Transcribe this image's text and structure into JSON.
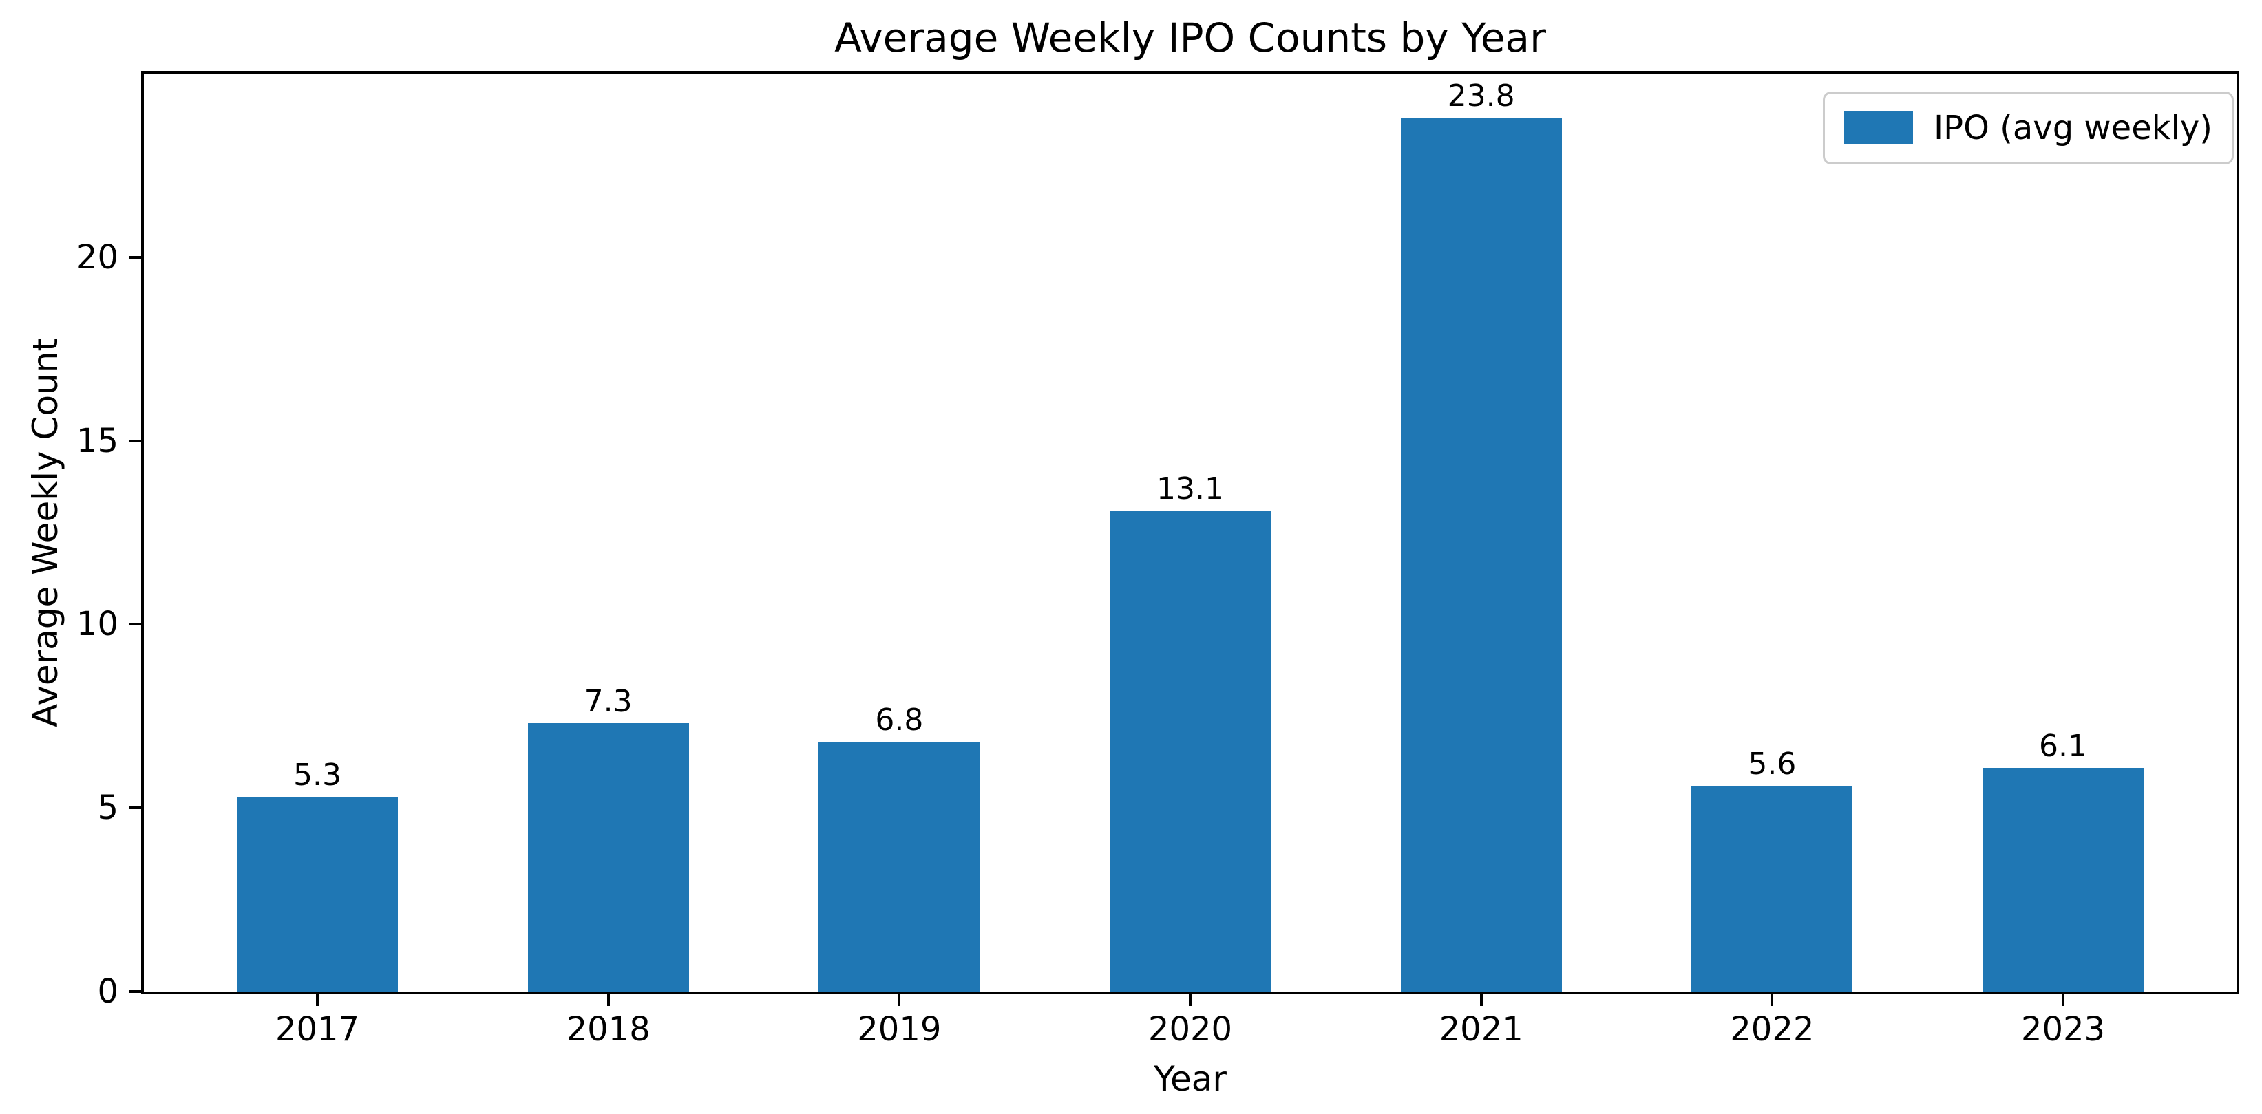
{
  "chart_data": {
    "type": "bar",
    "title": "Average Weekly IPO Counts by Year",
    "xlabel": "Year",
    "ylabel": "Average Weekly Count",
    "categories": [
      "2017",
      "2018",
      "2019",
      "2020",
      "2021",
      "2022",
      "2023"
    ],
    "series": [
      {
        "name": "IPO (avg weekly)",
        "values": [
          5.3,
          7.3,
          6.8,
          13.1,
          23.8,
          5.6,
          6.1
        ]
      }
    ],
    "value_labels": [
      "5.3",
      "7.3",
      "6.8",
      "13.1",
      "23.8",
      "5.6",
      "6.1"
    ],
    "ylim": [
      0,
      25
    ],
    "y_ticks": [
      0,
      5,
      10,
      15,
      20
    ],
    "grid": false,
    "legend": {
      "position": "upper right",
      "entries": [
        "IPO (avg weekly)"
      ]
    },
    "colors": {
      "bar": "#1f77b4",
      "axis": "#000000",
      "text": "#000000",
      "legend_border": "#cccccc",
      "background": "#ffffff"
    }
  }
}
